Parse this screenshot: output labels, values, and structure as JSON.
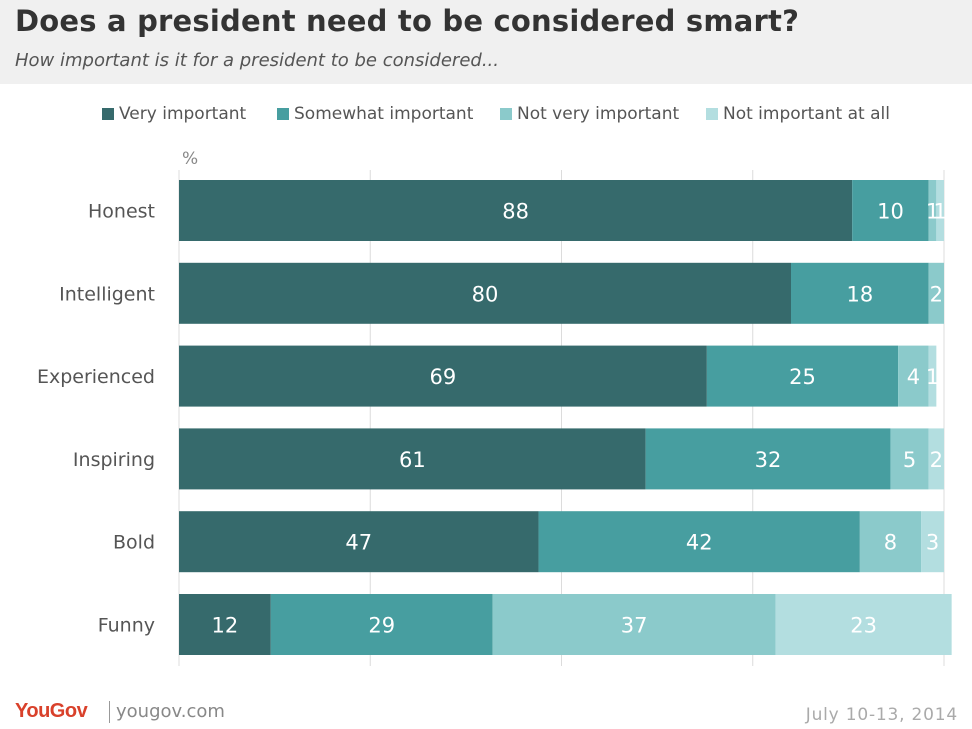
{
  "header": {
    "title": "Does a president need to be considered smart?",
    "subtitle": "How important is it for a president to be considered..."
  },
  "footer": {
    "brand": "YouGov",
    "site": "yougov.com",
    "date": "July 10-13, 2014"
  },
  "colors": {
    "header_bg": "#f0f0f0",
    "very_important": "#366a6c",
    "somewhat_important": "#479ea0",
    "not_very_important": "#8bcacb",
    "not_important_at_all": "#b3dee0",
    "brand": "#d9412b"
  },
  "chart_data": {
    "type": "bar",
    "orientation": "horizontal",
    "stacked": true,
    "unit_label": "%",
    "xlim": [
      0,
      100
    ],
    "grid": true,
    "legend_position": "top",
    "categories": [
      "Honest",
      "Intelligent",
      "Experienced",
      "Inspiring",
      "Bold",
      "Funny"
    ],
    "series": [
      {
        "name": "Very important",
        "color": "#366a6c",
        "values": [
          88,
          80,
          69,
          61,
          47,
          12
        ]
      },
      {
        "name": "Somewhat important",
        "color": "#479ea0",
        "values": [
          10,
          18,
          25,
          32,
          42,
          29
        ]
      },
      {
        "name": "Not very important",
        "color": "#8bcacb",
        "values": [
          1,
          2,
          4,
          5,
          8,
          37
        ]
      },
      {
        "name": "Not important at all",
        "color": "#b3dee0",
        "values": [
          1,
          0,
          1,
          2,
          3,
          23
        ]
      }
    ]
  }
}
